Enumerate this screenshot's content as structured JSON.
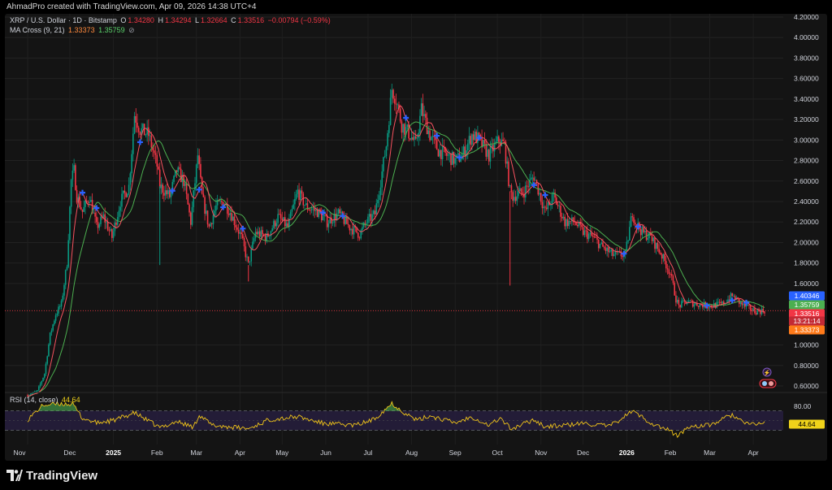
{
  "caption": "AhmadPro created with TradingView.com, Apr 09, 2026 14:38 UTC+4",
  "legend": {
    "symbol": "XRP / U.S. Dollar · 1D · Bitstamp",
    "o_label": "O",
    "o_value": "1.34280",
    "h_label": "H",
    "h_value": "1.34294",
    "l_label": "L",
    "l_value": "1.32664",
    "c_label": "C",
    "c_value": "1.33516",
    "change": "−0.00794 (−0.59%)",
    "ma_title": "MA Cross (9, 21)",
    "ma_fast": "1.33373",
    "ma_slow": "1.35759",
    "ma_icon": "eye-off-icon",
    "rsi_title": "RSI (14, close)",
    "rsi_value": "44.64"
  },
  "price_axis": {
    "ticks": [
      "4.20000",
      "4.00000",
      "3.80000",
      "3.60000",
      "3.40000",
      "3.20000",
      "3.00000",
      "2.80000",
      "2.60000",
      "2.40000",
      "2.20000",
      "2.00000",
      "1.80000",
      "1.60000",
      "1.00000",
      "0.80000",
      "0.60000"
    ],
    "tags": {
      "upper": "1.40346",
      "ma_slow": "1.35759",
      "last": "1.33516",
      "countdown": "13:21:14",
      "ma_fast": "1.33373"
    }
  },
  "rsi_axis": {
    "tick": "80.00",
    "tag": "44.64"
  },
  "time_axis": [
    "Nov",
    "Dec",
    "2025",
    "Feb",
    "Mar",
    "Apr",
    "May",
    "Jun",
    "Jul",
    "Aug",
    "Sep",
    "Oct",
    "Nov",
    "Dec",
    "2026",
    "Feb",
    "Mar",
    "Apr"
  ],
  "colors": {
    "up": "#089981",
    "down": "#f23645",
    "ma_fast": "#f7525f",
    "ma_slow": "#4caf50",
    "cross": "#2962ff",
    "rsi": "#f0c419",
    "rsi_band": "#2a2046",
    "tag_blue": "#2962ff",
    "tag_green": "#4caf50",
    "tag_red": "#f23645",
    "tag_orange": "#ff7a1a",
    "background": "#141414"
  },
  "footer": {
    "brand": "TradingView"
  },
  "chart_data": {
    "type": "candlestick",
    "series_name": "XRP / U.S. Dollar",
    "interval": "1D",
    "y_unit": "USD",
    "ylim": [
      0.6,
      4.2
    ],
    "rsi_ylim": [
      0,
      100
    ],
    "x_start": "2024-11-01",
    "x_end": "2026-04-09",
    "price_anchors": [
      [
        "2024-11-01",
        0.51
      ],
      [
        "2024-11-08",
        0.55
      ],
      [
        "2024-11-13",
        0.72
      ],
      [
        "2024-11-17",
        1.1
      ],
      [
        "2024-11-21",
        1.3
      ],
      [
        "2024-11-25",
        1.4
      ],
      [
        "2024-11-29",
        1.8
      ],
      [
        "2024-12-02",
        2.6
      ],
      [
        "2024-12-04",
        2.7
      ],
      [
        "2024-12-06",
        2.45
      ],
      [
        "2024-12-10",
        2.3
      ],
      [
        "2024-12-15",
        2.45
      ],
      [
        "2024-12-20",
        2.15
      ],
      [
        "2024-12-25",
        2.25
      ],
      [
        "2024-12-31",
        2.05
      ],
      [
        "2025-01-06",
        2.4
      ],
      [
        "2025-01-12",
        2.55
      ],
      [
        "2025-01-16",
        3.25
      ],
      [
        "2025-01-20",
        3.1
      ],
      [
        "2025-01-26",
        3.05
      ],
      [
        "2025-02-01",
        2.75
      ],
      [
        "2025-02-03",
        2.55
      ],
      [
        "2025-02-10",
        2.45
      ],
      [
        "2025-02-15",
        2.7
      ],
      [
        "2025-02-20",
        2.6
      ],
      [
        "2025-02-25",
        2.2
      ],
      [
        "2025-03-02",
        2.85
      ],
      [
        "2025-03-05",
        2.45
      ],
      [
        "2025-03-10",
        2.15
      ],
      [
        "2025-03-15",
        2.35
      ],
      [
        "2025-03-20",
        2.4
      ],
      [
        "2025-03-25",
        2.3
      ],
      [
        "2025-04-02",
        2.05
      ],
      [
        "2025-04-07",
        1.78
      ],
      [
        "2025-04-12",
        2.1
      ],
      [
        "2025-04-20",
        2.05
      ],
      [
        "2025-04-28",
        2.25
      ],
      [
        "2025-05-05",
        2.15
      ],
      [
        "2025-05-12",
        2.5
      ],
      [
        "2025-05-18",
        2.35
      ],
      [
        "2025-05-26",
        2.3
      ],
      [
        "2025-06-02",
        2.2
      ],
      [
        "2025-06-10",
        2.28
      ],
      [
        "2025-06-18",
        2.15
      ],
      [
        "2025-06-25",
        2.08
      ],
      [
        "2025-06-30",
        2.2
      ],
      [
        "2025-07-06",
        2.28
      ],
      [
        "2025-07-10",
        2.6
      ],
      [
        "2025-07-14",
        2.95
      ],
      [
        "2025-07-18",
        3.5
      ],
      [
        "2025-07-21",
        3.4
      ],
      [
        "2025-07-25",
        3.15
      ],
      [
        "2025-07-31",
        3.05
      ],
      [
        "2025-08-04",
        2.95
      ],
      [
        "2025-08-08",
        3.3
      ],
      [
        "2025-08-14",
        3.05
      ],
      [
        "2025-08-20",
        2.9
      ],
      [
        "2025-08-26",
        2.85
      ],
      [
        "2025-09-01",
        2.8
      ],
      [
        "2025-09-06",
        2.85
      ],
      [
        "2025-09-13",
        3.05
      ],
      [
        "2025-09-18",
        3.0
      ],
      [
        "2025-09-25",
        2.85
      ],
      [
        "2025-10-02",
        3.0
      ],
      [
        "2025-10-06",
        2.95
      ],
      [
        "2025-10-10",
        2.5
      ],
      [
        "2025-10-12",
        2.45
      ],
      [
        "2025-10-20",
        2.5
      ],
      [
        "2025-10-27",
        2.65
      ],
      [
        "2025-11-04",
        2.3
      ],
      [
        "2025-11-10",
        2.45
      ],
      [
        "2025-11-18",
        2.2
      ],
      [
        "2025-11-25",
        2.2
      ],
      [
        "2025-12-01",
        2.1
      ],
      [
        "2025-12-08",
        2.05
      ],
      [
        "2025-12-15",
        1.95
      ],
      [
        "2025-12-22",
        1.88
      ],
      [
        "2025-12-31",
        1.88
      ],
      [
        "2026-01-05",
        2.3
      ],
      [
        "2026-01-07",
        2.2
      ],
      [
        "2026-01-12",
        2.1
      ],
      [
        "2026-01-18",
        2.05
      ],
      [
        "2026-01-25",
        1.9
      ],
      [
        "2026-02-01",
        1.7
      ],
      [
        "2026-02-05",
        1.45
      ],
      [
        "2026-02-07",
        1.38
      ],
      [
        "2026-02-12",
        1.42
      ],
      [
        "2026-02-20",
        1.4
      ],
      [
        "2026-03-01",
        1.38
      ],
      [
        "2026-03-10",
        1.4
      ],
      [
        "2026-03-17",
        1.48
      ],
      [
        "2026-03-25",
        1.38
      ],
      [
        "2026-04-02",
        1.33
      ],
      [
        "2026-04-09",
        1.335
      ]
    ],
    "rsi_anchors": [
      [
        "2024-11-01",
        52
      ],
      [
        "2024-11-12",
        82
      ],
      [
        "2024-11-25",
        85
      ],
      [
        "2024-12-03",
        84
      ],
      [
        "2024-12-10",
        55
      ],
      [
        "2024-12-20",
        45
      ],
      [
        "2025-01-01",
        50
      ],
      [
        "2025-01-16",
        66
      ],
      [
        "2025-02-03",
        35
      ],
      [
        "2025-02-15",
        48
      ],
      [
        "2025-02-27",
        36
      ],
      [
        "2025-03-03",
        62
      ],
      [
        "2025-03-12",
        40
      ],
      [
        "2025-04-07",
        33
      ],
      [
        "2025-04-22",
        52
      ],
      [
        "2025-05-12",
        58
      ],
      [
        "2025-05-30",
        44
      ],
      [
        "2025-06-22",
        40
      ],
      [
        "2025-07-05",
        52
      ],
      [
        "2025-07-18",
        86
      ],
      [
        "2025-07-26",
        68
      ],
      [
        "2025-08-05",
        50
      ],
      [
        "2025-08-14",
        60
      ],
      [
        "2025-09-01",
        45
      ],
      [
        "2025-09-13",
        58
      ],
      [
        "2025-09-25",
        40
      ],
      [
        "2025-10-03",
        55
      ],
      [
        "2025-10-11",
        32
      ],
      [
        "2025-10-27",
        52
      ],
      [
        "2025-11-04",
        37
      ],
      [
        "2025-11-18",
        40
      ],
      [
        "2025-12-01",
        44
      ],
      [
        "2025-12-20",
        38
      ],
      [
        "2026-01-05",
        70
      ],
      [
        "2026-01-20",
        42
      ],
      [
        "2026-02-01",
        28
      ],
      [
        "2026-02-06",
        18
      ],
      [
        "2026-02-15",
        38
      ],
      [
        "2026-03-01",
        40
      ],
      [
        "2026-03-17",
        62
      ],
      [
        "2026-03-27",
        42
      ],
      [
        "2026-04-09",
        44.64
      ]
    ],
    "ma_cross_markers": [
      "2024-12-10",
      "2024-12-20",
      "2025-01-20",
      "2025-02-12",
      "2025-03-03",
      "2025-03-20",
      "2025-04-03",
      "2025-05-30",
      "2025-06-13",
      "2025-07-28",
      "2025-08-19",
      "2025-09-04",
      "2025-09-18",
      "2025-10-27",
      "2025-11-04",
      "2025-12-30",
      "2026-01-09",
      "2026-02-27",
      "2026-03-17",
      "2026-03-27"
    ]
  }
}
